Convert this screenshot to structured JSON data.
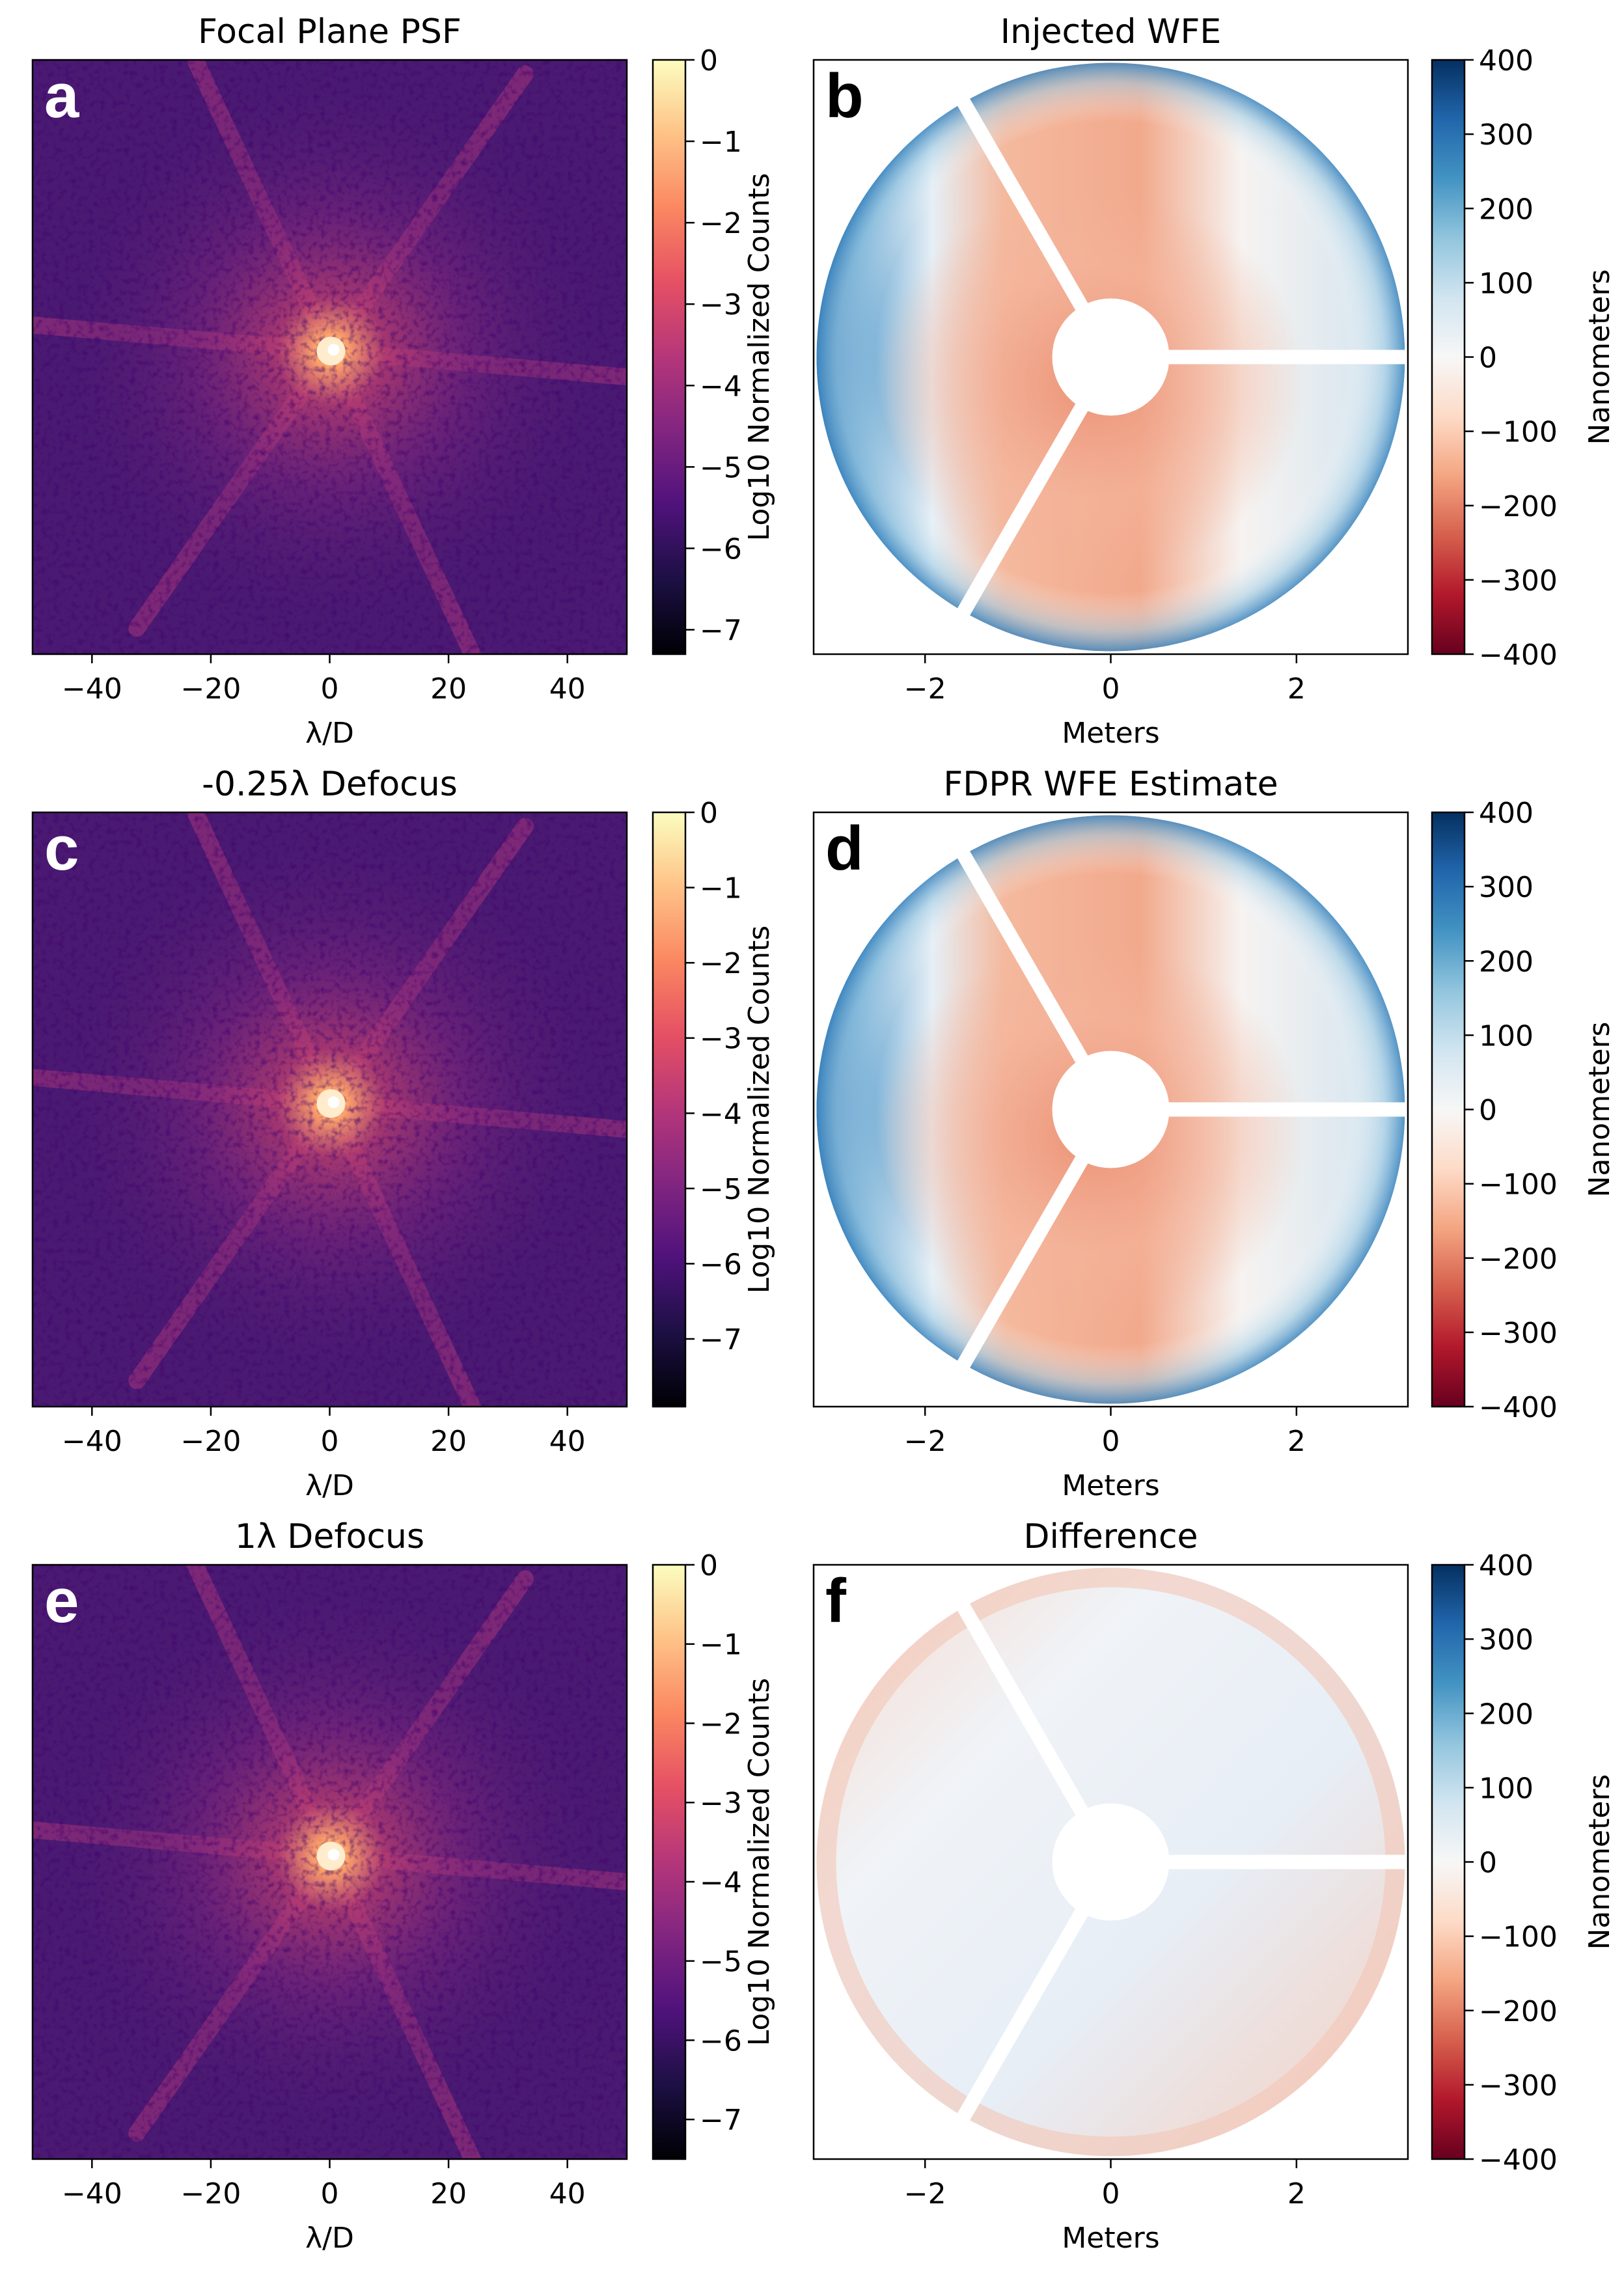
{
  "chart_data": [
    {
      "panel": "a",
      "type": "heatmap",
      "title": "Focal Plane PSF",
      "xlabel": "λ/D",
      "xlim": [
        -50,
        50
      ],
      "x_ticks": [
        -40,
        -20,
        0,
        20,
        40
      ],
      "x_tick_labels": [
        "−40",
        "−20",
        "0",
        "20",
        "40"
      ],
      "colormap": "magma",
      "colorbar": {
        "label": "Log10 Normalized Counts",
        "range": [
          -7.3,
          0
        ],
        "ticks": [
          0,
          -1,
          -2,
          -3,
          -4,
          -5,
          -6,
          -7
        ],
        "tick_labels": [
          "0",
          "−1",
          "−2",
          "−3",
          "−4",
          "−5",
          "−6",
          "−7"
        ]
      }
    },
    {
      "panel": "b",
      "type": "heatmap",
      "title": "Injected WFE",
      "xlabel": "Meters",
      "xlim": [
        -3.2,
        3.2
      ],
      "x_ticks": [
        -2,
        0,
        2
      ],
      "x_tick_labels": [
        "−2",
        "0",
        "2"
      ],
      "colormap": "RdBu",
      "colorbar": {
        "label": "Nanometers",
        "range": [
          -400,
          400
        ],
        "ticks": [
          400,
          300,
          200,
          100,
          0,
          -100,
          -200,
          -300,
          -400
        ],
        "tick_labels": [
          "400",
          "300",
          "200",
          "100",
          "0",
          "−100",
          "−200",
          "−300",
          "−400"
        ]
      }
    },
    {
      "panel": "c",
      "type": "heatmap",
      "title": "-0.25λ Defocus",
      "xlabel": "λ/D",
      "xlim": [
        -50,
        50
      ],
      "x_ticks": [
        -40,
        -20,
        0,
        20,
        40
      ],
      "x_tick_labels": [
        "−40",
        "−20",
        "0",
        "20",
        "40"
      ],
      "colormap": "magma",
      "colorbar": {
        "label": "Log10 Normalized Counts",
        "range": [
          -7.9,
          0
        ],
        "ticks": [
          0,
          -1,
          -2,
          -3,
          -4,
          -5,
          -6,
          -7
        ],
        "tick_labels": [
          "0",
          "−1",
          "−2",
          "−3",
          "−4",
          "−5",
          "−6",
          "−7"
        ]
      }
    },
    {
      "panel": "d",
      "type": "heatmap",
      "title": "FDPR WFE Estimate",
      "xlabel": "Meters",
      "xlim": [
        -3.2,
        3.2
      ],
      "x_ticks": [
        -2,
        0,
        2
      ],
      "x_tick_labels": [
        "−2",
        "0",
        "2"
      ],
      "colormap": "RdBu",
      "colorbar": {
        "label": "Nanometers",
        "range": [
          -400,
          400
        ],
        "ticks": [
          400,
          300,
          200,
          100,
          0,
          -100,
          -200,
          -300,
          -400
        ],
        "tick_labels": [
          "400",
          "300",
          "200",
          "100",
          "0",
          "−100",
          "−200",
          "−300",
          "−400"
        ]
      }
    },
    {
      "panel": "e",
      "type": "heatmap",
      "title": "1λ Defocus",
      "xlabel": "λ/D",
      "xlim": [
        -50,
        50
      ],
      "x_ticks": [
        -40,
        -20,
        0,
        20,
        40
      ],
      "x_tick_labels": [
        "−40",
        "−20",
        "0",
        "20",
        "40"
      ],
      "colormap": "magma",
      "colorbar": {
        "label": "Log10 Normalized Counts",
        "range": [
          -7.5,
          0
        ],
        "ticks": [
          0,
          -1,
          -2,
          -3,
          -4,
          -5,
          -6,
          -7
        ],
        "tick_labels": [
          "0",
          "−1",
          "−2",
          "−3",
          "−4",
          "−5",
          "−6",
          "−7"
        ]
      }
    },
    {
      "panel": "f",
      "type": "heatmap",
      "title": "Difference",
      "xlabel": "Meters",
      "xlim": [
        -3.2,
        3.2
      ],
      "x_ticks": [
        -2,
        0,
        2
      ],
      "x_tick_labels": [
        "−2",
        "0",
        "2"
      ],
      "colormap": "RdBu",
      "colorbar": {
        "label": "Nanometers",
        "range": [
          -400,
          400
        ],
        "ticks": [
          400,
          300,
          200,
          100,
          0,
          -100,
          -200,
          -300,
          -400
        ],
        "tick_labels": [
          "400",
          "300",
          "200",
          "100",
          "0",
          "−100",
          "−200",
          "−300",
          "−400"
        ]
      }
    }
  ],
  "colors": {
    "magma": [
      "#000004",
      "#1c1044",
      "#4f127b",
      "#812581",
      "#b5367a",
      "#e55064",
      "#fb8761",
      "#fec287",
      "#fcfdbf"
    ],
    "rdbu": [
      "#67001f",
      "#b2182b",
      "#d6604d",
      "#f4a582",
      "#fddbc7",
      "#f7f7f7",
      "#d1e5f0",
      "#92c5de",
      "#4393c3",
      "#2166ac",
      "#053061"
    ],
    "psf_background": "#4a1a72",
    "psf_halo": "#c0406f",
    "psf_core": "#fbe8a8"
  }
}
